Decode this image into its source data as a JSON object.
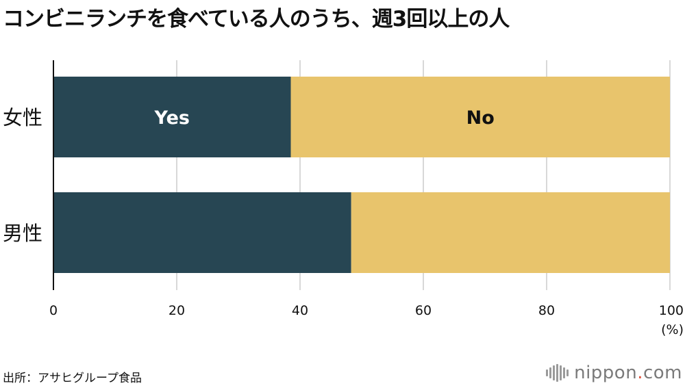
{
  "title": "コンビニランチを食べている人のうち、週3回以上の人",
  "source": "出所：アサヒグループ食品",
  "logo": {
    "name": "nippon",
    "dot": ".",
    "tld": "com"
  },
  "colors": {
    "yes": "#274653",
    "no": "#e8c46c",
    "grid": "#cccccc",
    "axis": "#111111"
  },
  "chart_data": {
    "type": "bar",
    "orientation": "horizontal",
    "stacked": true,
    "categories": [
      "女性",
      "男性"
    ],
    "series": [
      {
        "name": "Yes",
        "values": [
          38.5,
          48.3
        ]
      },
      {
        "name": "No",
        "values": [
          61.5,
          51.7
        ]
      }
    ],
    "xlim": [
      0,
      100
    ],
    "xticks": [
      "0",
      "20",
      "40",
      "60",
      "80",
      "100"
    ],
    "x_unit": "(%)",
    "grid": true,
    "legend": "in-bar labels (first bar only)"
  }
}
